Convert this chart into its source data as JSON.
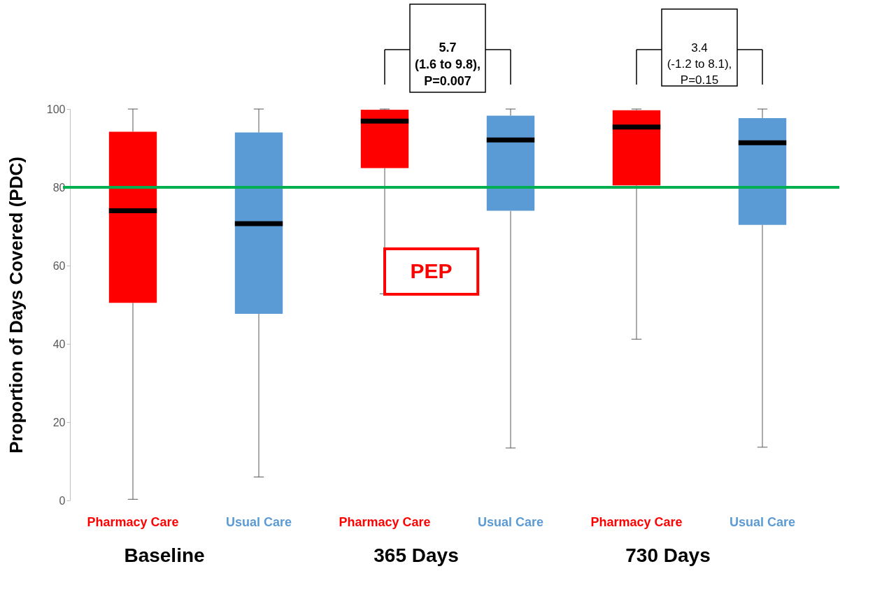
{
  "chart_data": {
    "type": "box",
    "ylabel": "Proportion of Days Covered (PDC)",
    "categories": [
      "Pharmacy Care",
      "Usual Care",
      "Pharmacy Care",
      "Usual Care",
      "Pharmacy Care",
      "Usual Care"
    ],
    "colors": [
      "#ff0000",
      "#5b9bd5",
      "#ff0000",
      "#5b9bd5",
      "#ff0000",
      "#5b9bd5"
    ],
    "boxes": [
      {
        "low": 0.3,
        "q1": 50.5,
        "median": 74.0,
        "q3": 94.2,
        "high": 100
      },
      {
        "low": 6.0,
        "q1": 47.7,
        "median": 70.7,
        "q3": 94.0,
        "high": 100
      },
      {
        "low": 52.8,
        "q1": 84.9,
        "median": 96.9,
        "q3": 99.8,
        "high": 100
      },
      {
        "low": 13.4,
        "q1": 74.0,
        "median": 92.1,
        "q3": 98.3,
        "high": 100
      },
      {
        "low": 41.2,
        "q1": 80.5,
        "median": 95.4,
        "q3": 99.7,
        "high": 100
      },
      {
        "low": 13.6,
        "q1": 70.4,
        "median": 91.4,
        "q3": 97.7,
        "high": 100
      }
    ],
    "ylim": [
      0,
      100
    ],
    "yticks": [
      0,
      20,
      40,
      60,
      80,
      100
    ],
    "grid": false,
    "ref_lines": [
      {
        "axis": "y",
        "value": 80,
        "color": "#00b050"
      }
    ],
    "annotations": [
      "Baseline",
      "365 Days",
      "730 Days",
      "5.7\n(1.6 to 9.8),\nP=0.007",
      "3.4\n(-1.2 to 8.1),\nP=0.15",
      "PEP"
    ]
  }
}
